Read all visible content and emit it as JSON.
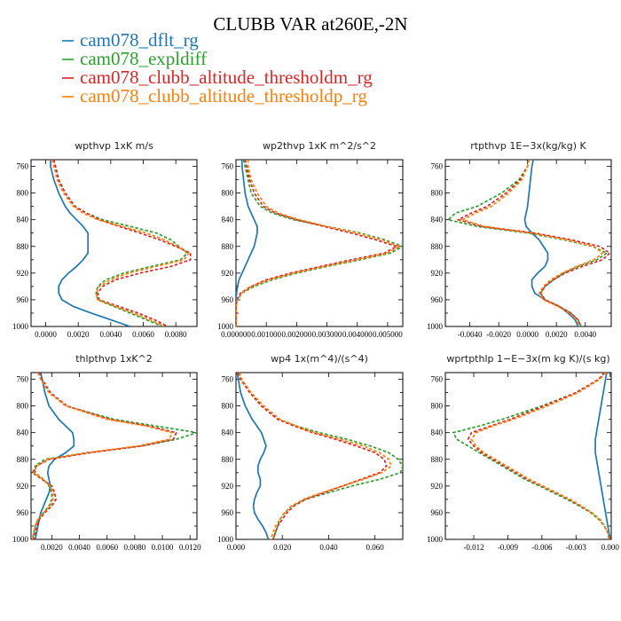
{
  "title": "CLUBB VAR at260E,-2N",
  "legend": [
    {
      "name": "cam078_dflt_rg",
      "color": "#1f77b4"
    },
    {
      "name": "cam078_expldiff",
      "color": "#2ca02c"
    },
    {
      "name": "cam078_clubb_altitude_thresholdm_rg",
      "color": "#d62728"
    },
    {
      "name": "cam078_clubb_altitude_thresholdp_rg",
      "color": "#ff7f0e"
    }
  ],
  "chart_data": [
    {
      "type": "line",
      "title": "wpthvp   1xK m/s",
      "xlim": [
        -0.0009,
        0.0093
      ],
      "ylim": [
        1000,
        750
      ],
      "xticks": [
        0.0,
        0.002,
        0.004,
        0.006,
        0.008
      ],
      "xtick_labels": [
        "0.0000",
        "0.0020",
        "0.0040",
        "0.0060",
        "0.0080"
      ],
      "yticks": [
        760,
        800,
        840,
        880,
        920,
        960,
        1000
      ],
      "y": [
        750,
        760,
        780,
        800,
        820,
        830,
        840,
        850,
        860,
        870,
        880,
        890,
        900,
        910,
        920,
        930,
        940,
        950,
        960,
        970,
        980,
        990,
        1000
      ],
      "series": [
        {
          "name": "cam078_dflt_rg",
          "values": [
            0.0003,
            0.0003,
            0.0005,
            0.0008,
            0.0012,
            0.0015,
            0.0019,
            0.0023,
            0.0026,
            0.0026,
            0.0026,
            0.0026,
            0.0023,
            0.0019,
            0.0014,
            0.001,
            0.0008,
            0.0008,
            0.001,
            0.0017,
            0.0028,
            0.004,
            0.0052
          ]
        },
        {
          "name": "cam078_expldiff",
          "values": [
            0.0005,
            0.0006,
            0.0008,
            0.0012,
            0.0018,
            0.0025,
            0.0035,
            0.0052,
            0.0068,
            0.0077,
            0.0082,
            0.0087,
            0.0083,
            0.0065,
            0.0048,
            0.0037,
            0.0032,
            0.0031,
            0.0032,
            0.0042,
            0.0052,
            0.0062,
            0.0072
          ]
        },
        {
          "name": "cam078_clubb_altitude_thresholdm_rg",
          "values": [
            0.0005,
            0.0006,
            0.0008,
            0.0012,
            0.0018,
            0.0025,
            0.0033,
            0.0045,
            0.0058,
            0.007,
            0.008,
            0.0089,
            0.0089,
            0.0077,
            0.0058,
            0.0043,
            0.0035,
            0.0032,
            0.0033,
            0.0045,
            0.0057,
            0.0067,
            0.0075
          ]
        },
        {
          "name": "cam078_clubb_altitude_thresholdp_rg",
          "values": [
            0.0004,
            0.0005,
            0.0007,
            0.0011,
            0.0017,
            0.0023,
            0.0032,
            0.0047,
            0.0062,
            0.0073,
            0.0081,
            0.0088,
            0.0085,
            0.0068,
            0.0051,
            0.004,
            0.0033,
            0.0031,
            0.0032,
            0.0043,
            0.0054,
            0.0064,
            0.0073
          ]
        }
      ]
    },
    {
      "type": "line",
      "title": "wp2thvp   1xK m^2/s^2",
      "xlim": [
        0,
        0.0055
      ],
      "ylim": [
        1000,
        750
      ],
      "xticks": [
        0.0,
        0.001,
        0.002,
        0.003,
        0.004,
        0.005
      ],
      "xtick_labels": [
        "0.000000",
        "0.001000",
        "0.002000",
        "0.003000",
        "0.004000",
        "0.005000"
      ],
      "yticks": [
        760,
        800,
        840,
        880,
        920,
        960,
        1000
      ],
      "y": [
        750,
        760,
        780,
        800,
        820,
        830,
        840,
        850,
        860,
        870,
        880,
        890,
        900,
        910,
        920,
        930,
        940,
        950,
        960,
        970,
        980,
        990,
        1000
      ],
      "series": [
        {
          "name": "cam078_dflt_rg",
          "values": [
            0.0002,
            0.0002,
            0.00025,
            0.0003,
            0.0004,
            0.0005,
            0.0006,
            0.0007,
            0.0007,
            0.00065,
            0.0006,
            0.0005,
            0.0004,
            0.0003,
            0.0002,
            0.0001,
            5e-05,
            2e-05,
            0.0,
            0.0,
            0.0,
            0.0,
            0.0
          ]
        },
        {
          "name": "cam078_expldiff",
          "values": [
            0.00025,
            0.0003,
            0.0004,
            0.0005,
            0.0008,
            0.0012,
            0.0019,
            0.003,
            0.0041,
            0.0049,
            0.0055,
            0.0051,
            0.0041,
            0.003,
            0.002,
            0.0012,
            0.0006,
            0.0002,
            5e-05,
            0.0,
            0.0,
            0.0,
            0.0
          ]
        },
        {
          "name": "cam078_clubb_altitude_thresholdm_rg",
          "values": [
            0.0003,
            0.00035,
            0.00045,
            0.0006,
            0.0009,
            0.0013,
            0.002,
            0.0029,
            0.0038,
            0.0046,
            0.0053,
            0.0049,
            0.0038,
            0.0028,
            0.0018,
            0.001,
            0.0005,
            0.00015,
            3e-05,
            0.0,
            0.0,
            0.0,
            0.0
          ]
        },
        {
          "name": "cam078_clubb_altitude_thresholdp_rg",
          "values": [
            0.0004,
            0.0004,
            0.0005,
            0.0007,
            0.001,
            0.0014,
            0.0021,
            0.003,
            0.004,
            0.0048,
            0.0054,
            0.005,
            0.004,
            0.0029,
            0.0019,
            0.0011,
            0.0005,
            0.0002,
            5e-05,
            0.0,
            0.0,
            0.0,
            0.0
          ]
        }
      ]
    },
    {
      "type": "line",
      "title": "rtpthvp   1E−3x(kg/kg) K",
      "xlim": [
        -0.0057,
        0.0058
      ],
      "ylim": [
        1000,
        750
      ],
      "xticks": [
        -0.004,
        -0.002,
        0.0,
        0.002,
        0.004
      ],
      "xtick_labels": [
        "-0.0040",
        "-0.0020",
        "0.0000",
        "0.0020",
        "0.0040"
      ],
      "yticks": [
        760,
        800,
        840,
        880,
        920,
        960,
        1000
      ],
      "y": [
        750,
        760,
        780,
        800,
        820,
        830,
        840,
        850,
        860,
        870,
        880,
        890,
        900,
        910,
        920,
        930,
        940,
        950,
        960,
        970,
        980,
        990,
        1000
      ],
      "series": [
        {
          "name": "cam078_dflt_rg",
          "values": [
            0.0004,
            0.0003,
            0.0002,
            0.0001,
            0.0,
            -0.0001,
            -0.0002,
            -0.0001,
            0.0003,
            0.0008,
            0.0011,
            0.0014,
            0.0014,
            0.0012,
            0.0007,
            0.0003,
            0.0003,
            0.0005,
            0.0012,
            0.0022,
            0.0028,
            0.0033,
            0.0035
          ]
        },
        {
          "name": "cam078_expldiff",
          "values": [
            0.0001,
            0.0,
            -0.0006,
            -0.0018,
            -0.0035,
            -0.005,
            -0.0055,
            -0.0035,
            0.0,
            0.0025,
            0.0045,
            0.0055,
            0.0048,
            0.0035,
            0.0025,
            0.0018,
            0.0012,
            0.0009,
            0.0012,
            0.0022,
            0.003,
            0.0035,
            0.0037
          ]
        },
        {
          "name": "cam078_clubb_altitude_thresholdm_rg",
          "values": [
            0.0001,
            0.0,
            -0.0005,
            -0.0015,
            -0.0028,
            -0.0039,
            -0.0048,
            -0.0032,
            0.0005,
            0.003,
            0.005,
            0.0057,
            0.0052,
            0.0038,
            0.0026,
            0.0018,
            0.0012,
            0.0009,
            0.0012,
            0.0022,
            0.003,
            0.0035,
            0.0037
          ]
        },
        {
          "name": "cam078_clubb_altitude_thresholdp_rg",
          "values": [
            0.0001,
            0.0,
            -0.0004,
            -0.0013,
            -0.0025,
            -0.0036,
            -0.0045,
            -0.003,
            0.0003,
            0.0027,
            0.0046,
            0.0052,
            0.0046,
            0.0034,
            0.0024,
            0.0016,
            0.0011,
            0.0008,
            0.0011,
            0.0021,
            0.0029,
            0.0034,
            0.0036
          ]
        }
      ]
    },
    {
      "type": "line",
      "title": "thlpthvp   1xK^2",
      "xlim": [
        0.0005,
        0.0125
      ],
      "ylim": [
        1000,
        750
      ],
      "xticks": [
        0.002,
        0.004,
        0.006,
        0.008,
        0.01,
        0.012
      ],
      "xtick_labels": [
        "0.0020",
        "0.0040",
        "0.0060",
        "0.0080",
        "0.0100",
        "0.0120"
      ],
      "yticks": [
        760,
        800,
        840,
        880,
        920,
        960,
        1000
      ],
      "y": [
        750,
        760,
        780,
        800,
        820,
        830,
        840,
        850,
        860,
        870,
        880,
        890,
        900,
        910,
        920,
        930,
        940,
        950,
        960,
        970,
        980,
        990,
        1000
      ],
      "series": [
        {
          "name": "cam078_dflt_rg",
          "values": [
            0.0012,
            0.0013,
            0.0015,
            0.0018,
            0.0025,
            0.003,
            0.0035,
            0.0036,
            0.0036,
            0.003,
            0.0022,
            0.0018,
            0.0017,
            0.0018,
            0.0019,
            0.0018,
            0.0016,
            0.0014,
            0.0012,
            0.0011,
            0.001,
            0.0009,
            0.0008
          ]
        },
        {
          "name": "cam078_expldiff",
          "values": [
            0.001,
            0.0012,
            0.0018,
            0.003,
            0.0065,
            0.0095,
            0.0125,
            0.011,
            0.0085,
            0.0045,
            0.0015,
            0.0008,
            0.0008,
            0.0014,
            0.0018,
            0.002,
            0.002,
            0.0018,
            0.0014,
            0.001,
            0.0008,
            0.0007,
            0.0006
          ]
        },
        {
          "name": "cam078_clubb_altitude_thresholdm_rg",
          "values": [
            0.0011,
            0.0013,
            0.0019,
            0.0031,
            0.0062,
            0.009,
            0.011,
            0.0108,
            0.0085,
            0.0048,
            0.0018,
            0.0009,
            0.0006,
            0.0013,
            0.002,
            0.0022,
            0.0023,
            0.002,
            0.0015,
            0.0011,
            0.0009,
            0.0008,
            0.0007
          ]
        },
        {
          "name": "cam078_clubb_altitude_thresholdp_rg",
          "values": [
            0.001,
            0.0012,
            0.0018,
            0.003,
            0.006,
            0.0088,
            0.0107,
            0.0105,
            0.0082,
            0.0046,
            0.0017,
            0.0009,
            0.0007,
            0.0014,
            0.0019,
            0.0021,
            0.0021,
            0.0019,
            0.0014,
            0.001,
            0.0008,
            0.0007,
            0.0006
          ]
        }
      ]
    },
    {
      "type": "line",
      "title": "wp4   1x(m^4)/(s^4)",
      "xlim": [
        0,
        0.072
      ],
      "ylim": [
        1000,
        750
      ],
      "xticks": [
        0.0,
        0.02,
        0.04,
        0.06
      ],
      "xtick_labels": [
        "0.000",
        "0.020",
        "0.040",
        "0.060"
      ],
      "yticks": [
        760,
        800,
        840,
        880,
        920,
        960,
        1000
      ],
      "y": [
        750,
        760,
        780,
        800,
        820,
        830,
        840,
        850,
        860,
        870,
        880,
        890,
        900,
        910,
        920,
        930,
        940,
        950,
        960,
        970,
        980,
        990,
        1000
      ],
      "series": [
        {
          "name": "cam078_dflt_rg",
          "values": [
            0.0005,
            0.001,
            0.002,
            0.004,
            0.007,
            0.009,
            0.011,
            0.012,
            0.013,
            0.012,
            0.0105,
            0.0095,
            0.0095,
            0.0105,
            0.0105,
            0.009,
            0.008,
            0.0075,
            0.008,
            0.0095,
            0.0115,
            0.013,
            0.014
          ]
        },
        {
          "name": "cam078_expldiff",
          "values": [
            0.001,
            0.002,
            0.006,
            0.011,
            0.018,
            0.026,
            0.036,
            0.048,
            0.058,
            0.066,
            0.07,
            0.072,
            0.071,
            0.062,
            0.05,
            0.04,
            0.03,
            0.024,
            0.021,
            0.019,
            0.018,
            0.017,
            0.016
          ]
        },
        {
          "name": "cam078_clubb_altitude_thresholdm_rg",
          "values": [
            0.001,
            0.002,
            0.006,
            0.011,
            0.018,
            0.025,
            0.033,
            0.043,
            0.052,
            0.06,
            0.064,
            0.065,
            0.062,
            0.054,
            0.046,
            0.038,
            0.03,
            0.025,
            0.022,
            0.02,
            0.018,
            0.017,
            0.016
          ]
        },
        {
          "name": "cam078_clubb_altitude_thresholdp_rg",
          "values": [
            0.0015,
            0.0025,
            0.0065,
            0.012,
            0.019,
            0.026,
            0.034,
            0.045,
            0.055,
            0.062,
            0.066,
            0.067,
            0.063,
            0.055,
            0.046,
            0.037,
            0.029,
            0.024,
            0.021,
            0.019,
            0.017,
            0.016,
            0.015
          ]
        }
      ]
    },
    {
      "type": "line",
      "title": "wprtpthlp   1−E−3x(m kg K)/(s kg)",
      "xlim": [
        -0.0145,
        0.0001
      ],
      "ylim": [
        1000,
        750
      ],
      "xticks": [
        -0.012,
        -0.009,
        -0.006,
        -0.003,
        0.0
      ],
      "xtick_labels": [
        "-0.012",
        "-0.009",
        "-0.006",
        "-0.003",
        "0.000"
      ],
      "yticks": [
        760,
        800,
        840,
        880,
        920,
        960,
        1000
      ],
      "y": [
        750,
        760,
        780,
        800,
        820,
        830,
        840,
        850,
        860,
        870,
        880,
        890,
        900,
        910,
        920,
        930,
        940,
        950,
        960,
        970,
        980,
        990,
        1000
      ],
      "series": [
        {
          "name": "cam078_dflt_rg",
          "values": [
            -0.0003,
            -0.0004,
            -0.0006,
            -0.0008,
            -0.001,
            -0.0011,
            -0.0012,
            -0.0013,
            -0.0013,
            -0.0013,
            -0.0012,
            -0.0011,
            -0.001,
            -0.0009,
            -0.0008,
            -0.0007,
            -0.0006,
            -0.0005,
            -0.0004,
            -0.0003,
            -0.0002,
            -0.0001,
            0.0
          ]
        },
        {
          "name": "cam078_expldiff",
          "values": [
            -0.0005,
            -0.001,
            -0.003,
            -0.006,
            -0.0095,
            -0.0115,
            -0.0138,
            -0.0135,
            -0.0125,
            -0.0115,
            -0.0105,
            -0.0095,
            -0.0085,
            -0.0075,
            -0.0062,
            -0.005,
            -0.0038,
            -0.0027,
            -0.0017,
            -0.001,
            -0.0005,
            -0.0002,
            -0.0001
          ]
        },
        {
          "name": "cam078_clubb_altitude_thresholdm_rg",
          "values": [
            -0.0005,
            -0.001,
            -0.003,
            -0.0058,
            -0.0088,
            -0.0105,
            -0.0122,
            -0.0125,
            -0.012,
            -0.0113,
            -0.0103,
            -0.0093,
            -0.0083,
            -0.0073,
            -0.006,
            -0.0048,
            -0.0036,
            -0.0026,
            -0.0016,
            -0.0009,
            -0.0005,
            -0.0002,
            -0.0001
          ]
        },
        {
          "name": "cam078_clubb_altitude_thresholdp_rg",
          "values": [
            -0.0004,
            -0.0009,
            -0.0028,
            -0.0055,
            -0.0085,
            -0.0103,
            -0.0118,
            -0.0122,
            -0.0118,
            -0.0111,
            -0.0101,
            -0.0091,
            -0.0081,
            -0.0071,
            -0.0059,
            -0.0047,
            -0.0035,
            -0.0025,
            -0.0016,
            -0.0009,
            -0.0005,
            -0.0002,
            -0.0001
          ]
        }
      ]
    }
  ]
}
